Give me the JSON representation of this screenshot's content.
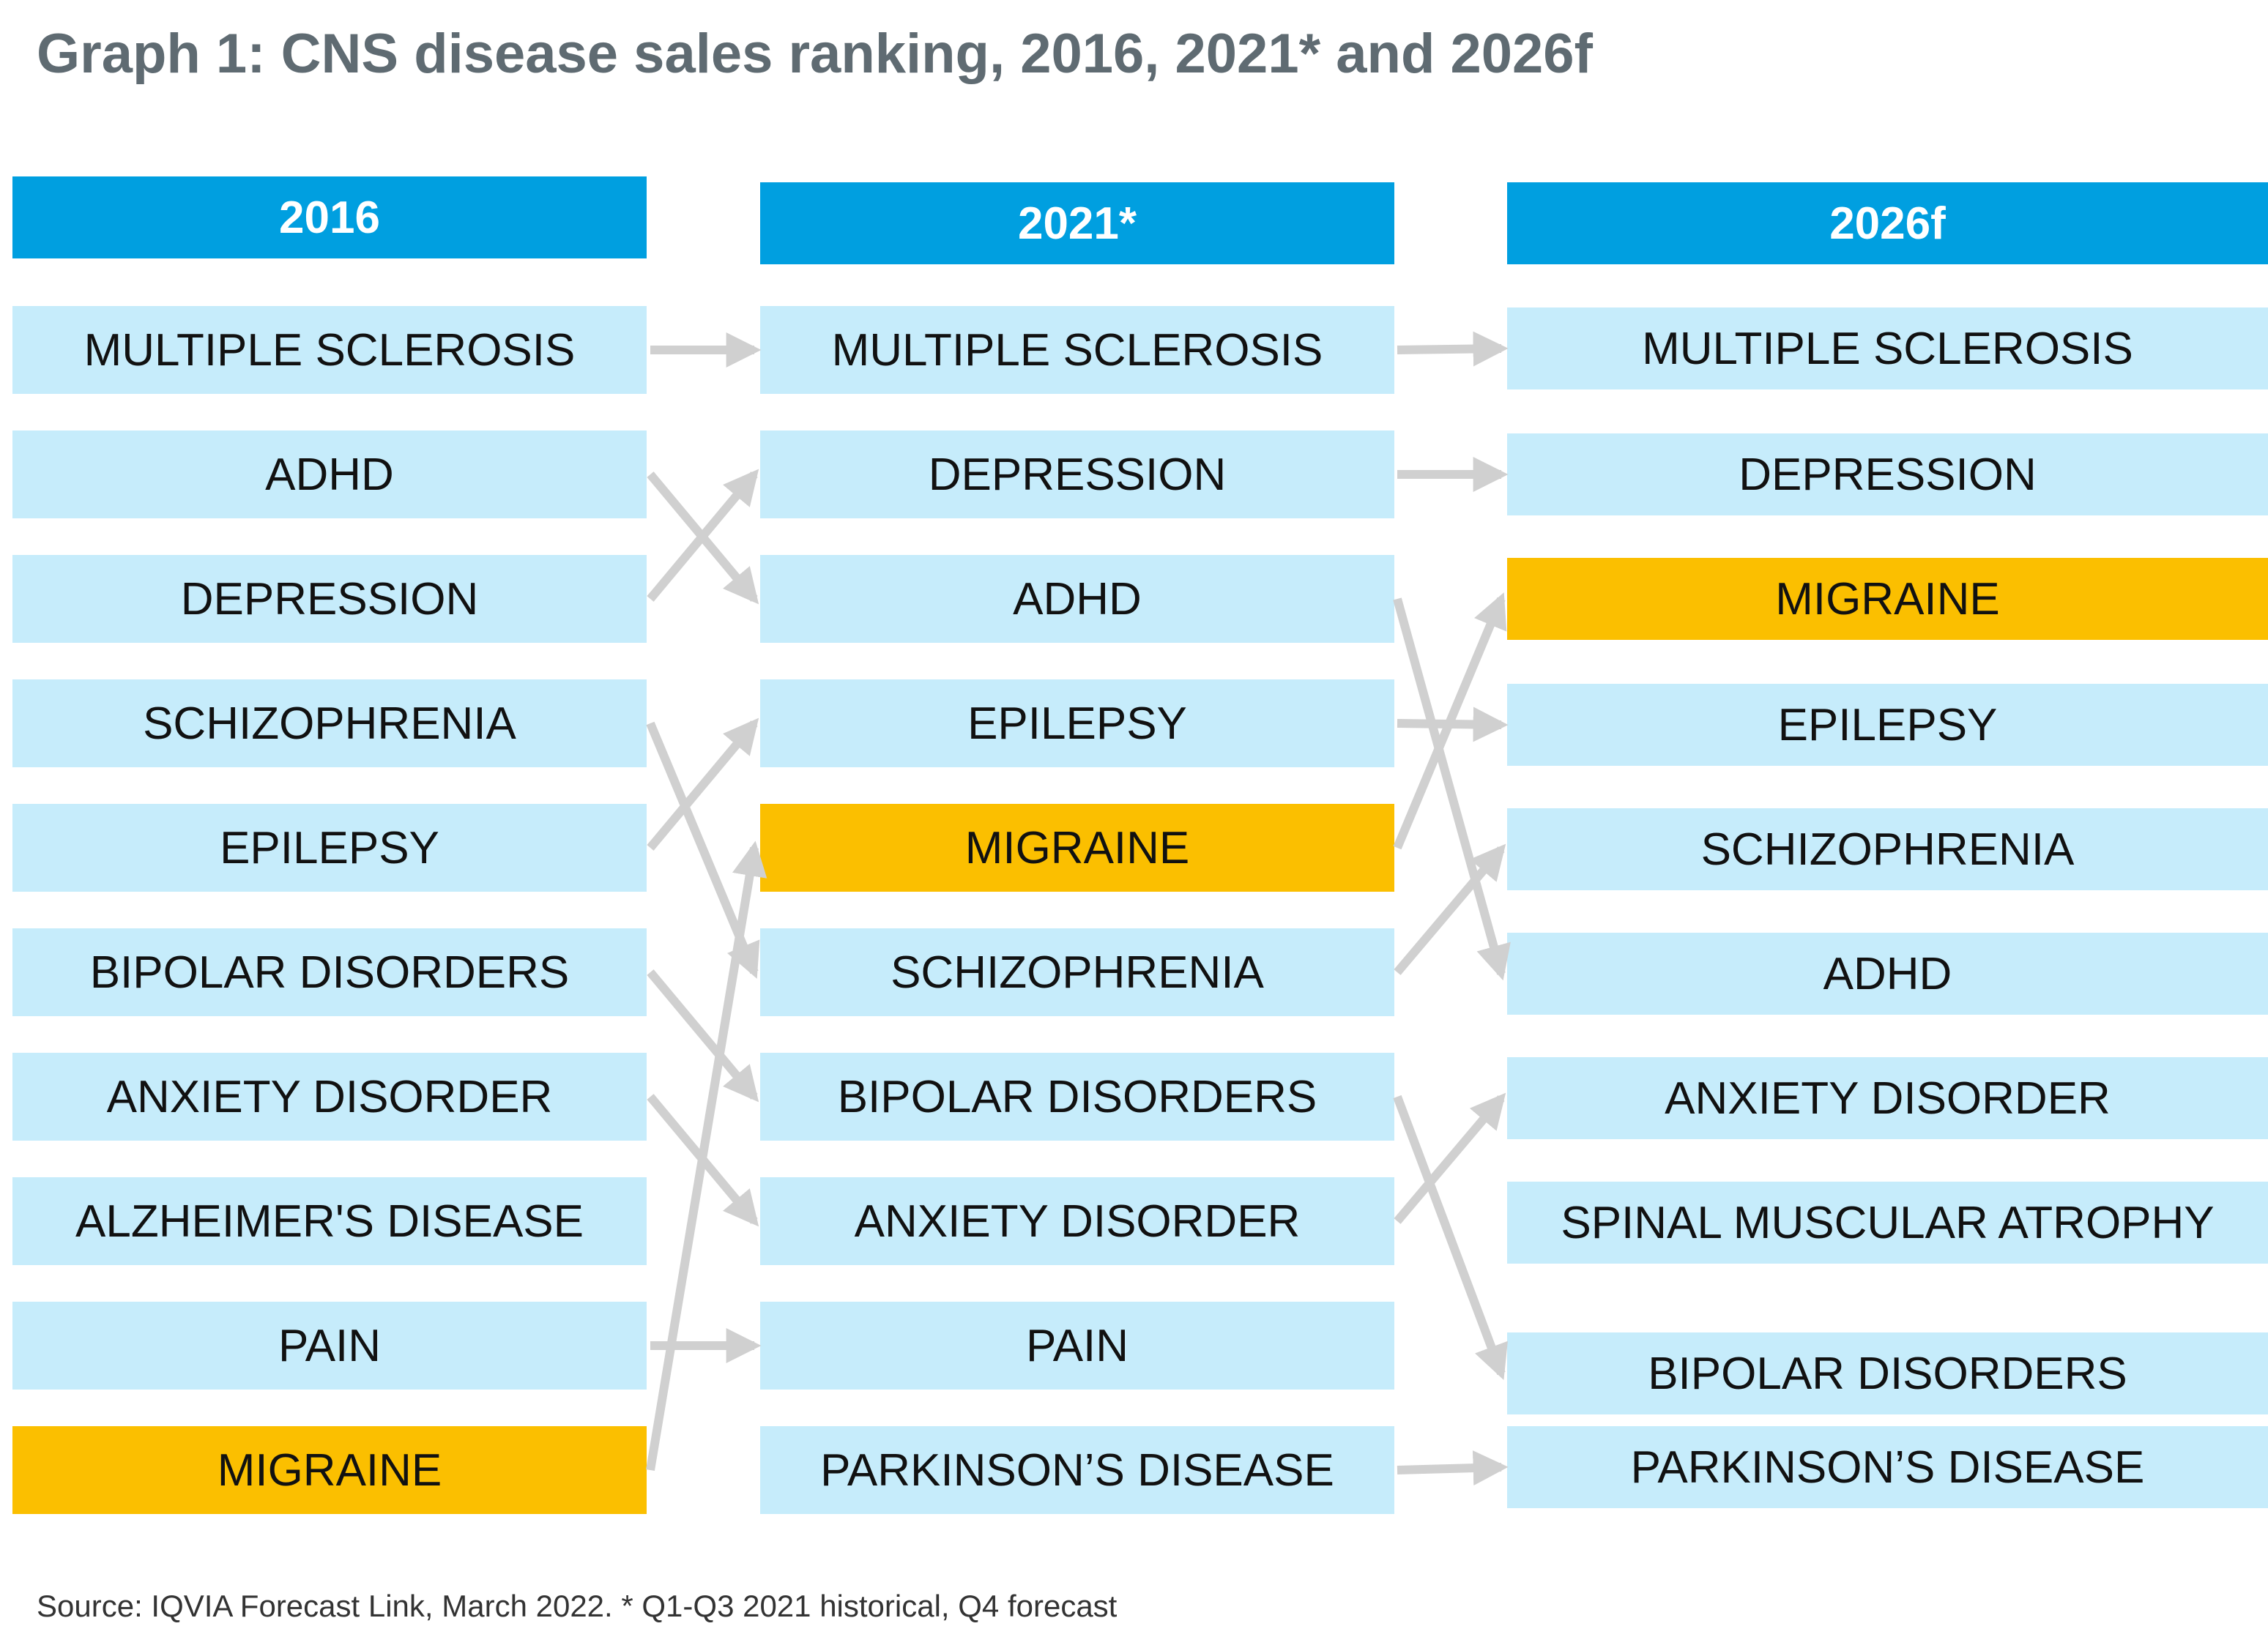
{
  "title": "Graph 1: CNS disease sales ranking, 2016, 2021* and 2026f",
  "columns": [
    {
      "header": "2016",
      "items": [
        "MULTIPLE SCLEROSIS",
        "ADHD",
        "DEPRESSION",
        "SCHIZOPHRENIA",
        "EPILEPSY",
        "BIPOLAR DISORDERS",
        "ANXIETY DISORDER",
        "ALZHEIMER'S DISEASE",
        "PAIN",
        "MIGRAINE"
      ]
    },
    {
      "header": "2021*",
      "items": [
        "MULTIPLE SCLEROSIS",
        "DEPRESSION",
        "ADHD",
        "EPILEPSY",
        "MIGRAINE",
        "SCHIZOPHRENIA",
        "BIPOLAR DISORDERS",
        "ANXIETY DISORDER",
        "PAIN",
        "PARKINSON’S DISEASE"
      ]
    },
    {
      "header": "2026f",
      "items": [
        "MULTIPLE SCLEROSIS",
        "DEPRESSION",
        "MIGRAINE",
        "EPILEPSY",
        "SCHIZOPHRENIA",
        "ADHD",
        "ANXIETY DISORDER",
        "SPINAL MUSCULAR ATROPHY",
        "BIPOLAR DISORDERS",
        "PARKINSON’S DISEASE"
      ]
    }
  ],
  "highlight_item": "MIGRAINE",
  "colors": {
    "title": "#5f6b72",
    "header": "#009fe0",
    "box": "#c6ecfb",
    "highlight": "#fbbf00",
    "arrow": "#d0d0d0"
  },
  "source": "Source: IQVIA Forecast Link, March 2022. * Q1-Q3 2021 historical, Q4 forecast"
}
